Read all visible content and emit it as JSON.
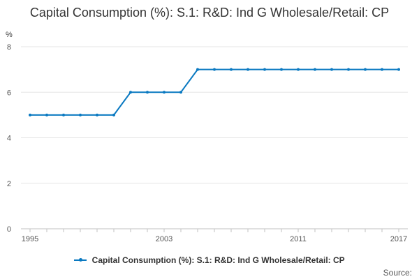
{
  "chart_data": {
    "type": "line",
    "title": "Capital Consumption (%): S.1: R&D: Ind G Wholesale/Retail: CP",
    "ylabel": "%",
    "xlabel": "",
    "x": [
      1995,
      1996,
      1997,
      1998,
      1999,
      2000,
      2001,
      2002,
      2003,
      2004,
      2005,
      2006,
      2007,
      2008,
      2009,
      2010,
      2011,
      2012,
      2013,
      2014,
      2015,
      2016,
      2017
    ],
    "x_tick_labels": [
      "1995",
      "2003",
      "2011",
      "2017"
    ],
    "y_tick_labels": [
      "0",
      "2",
      "4",
      "6",
      "8"
    ],
    "ylim": [
      0,
      8
    ],
    "grid": true,
    "legend_placement": "bottom",
    "series": [
      {
        "name": "Capital Consumption (%): S.1: R&D: Ind G Wholesale/Retail: CP",
        "color": "#0a79c1",
        "values": [
          5,
          5,
          5,
          5,
          5,
          5,
          6,
          6,
          6,
          6,
          7,
          7,
          7,
          7,
          7,
          7,
          7,
          7,
          7,
          7,
          7,
          7,
          7
        ]
      }
    ]
  },
  "source_label": "Source:"
}
